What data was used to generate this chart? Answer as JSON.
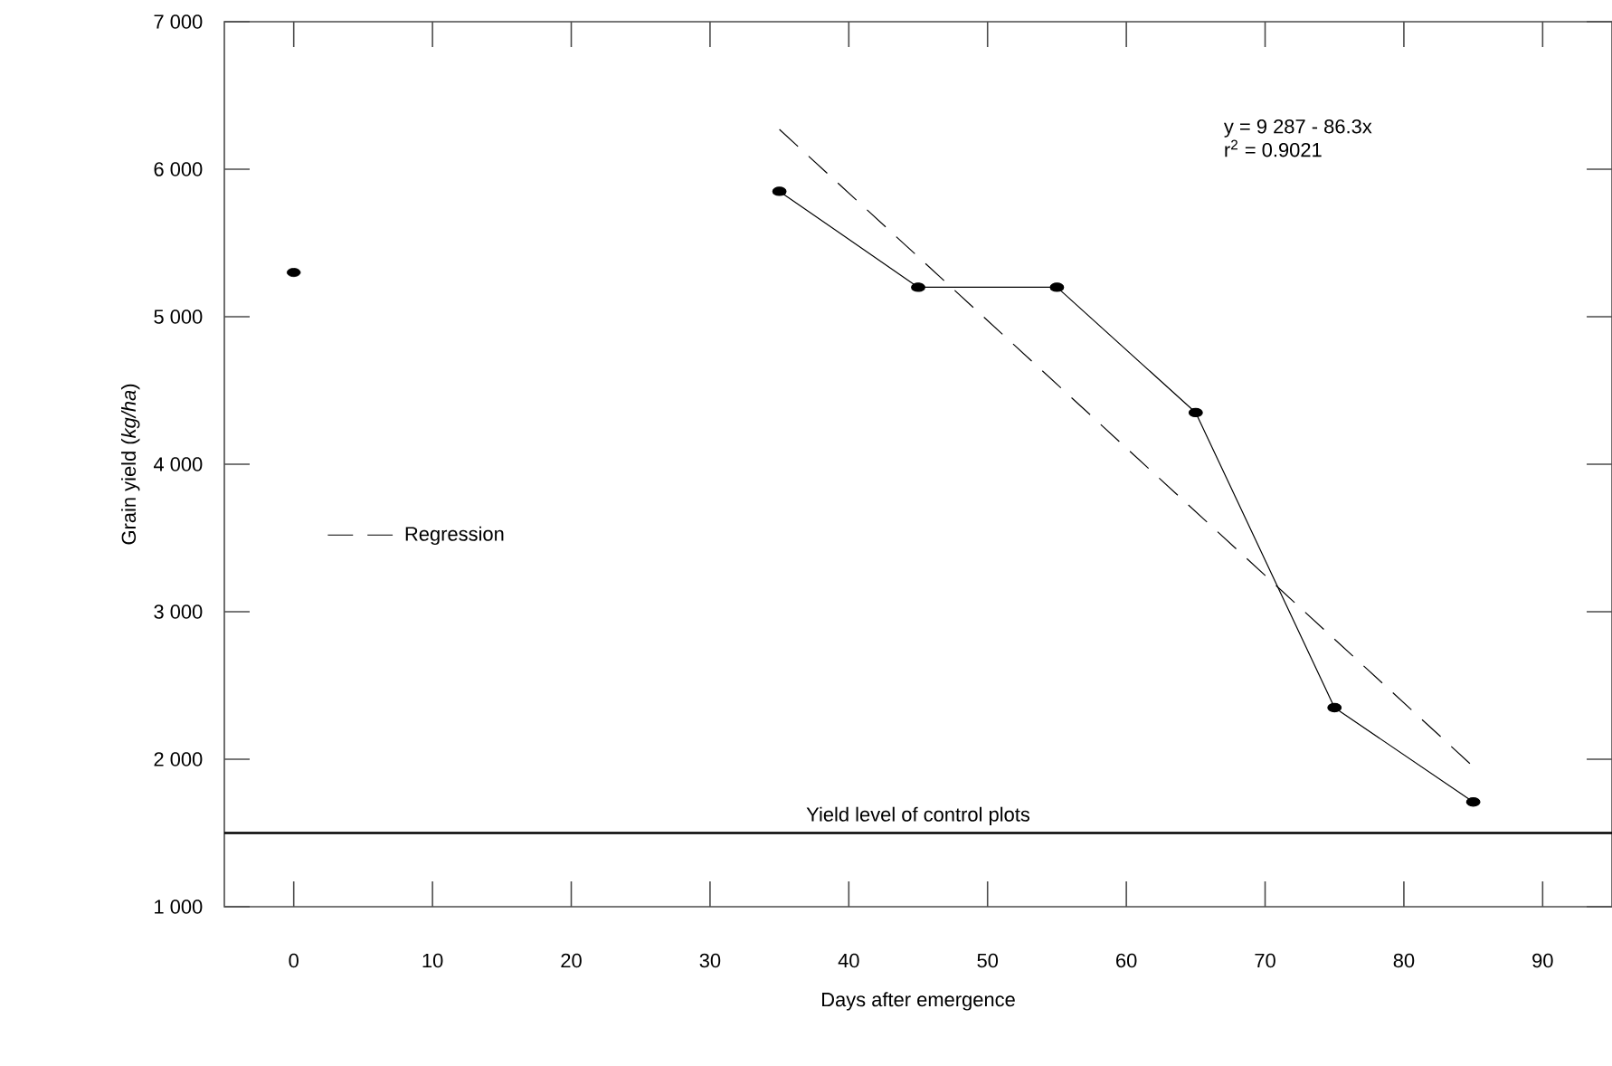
{
  "chart_data": {
    "type": "line",
    "xlabel": "Days after emergence",
    "ylabel": "Grain yield (*kg/ha*)",
    "xlim": [
      -5,
      95
    ],
    "ylim": [
      1000,
      7000
    ],
    "xticks": [
      0,
      10,
      20,
      30,
      40,
      50,
      60,
      70,
      80,
      90
    ],
    "yticks": [
      {
        "value": 1000,
        "label": "1 000"
      },
      {
        "value": 2000,
        "label": "2 000"
      },
      {
        "value": 3000,
        "label": "3 000"
      },
      {
        "value": 4000,
        "label": "4 000"
      },
      {
        "value": 5000,
        "label": "5 000"
      },
      {
        "value": 6000,
        "label": "6 000"
      },
      {
        "value": 7000,
        "label": "7 000"
      }
    ],
    "series": [
      {
        "type": "scatter",
        "color": "#000000",
        "marker": "circle",
        "x": [
          0
        ],
        "values": [
          5300
        ]
      },
      {
        "color": "#000000",
        "marker": "circle",
        "line_style": "solid",
        "x": [
          35,
          45,
          55,
          65,
          75,
          85
        ],
        "values": [
          5850,
          5200,
          5200,
          4350,
          2350,
          1710
        ]
      },
      {
        "name": "Regression",
        "color": "#000000",
        "marker": "none",
        "line_style": "dashed",
        "x": [
          35,
          85
        ],
        "values": [
          6270,
          1950
        ]
      }
    ],
    "ref_lines": [
      {
        "axis": "y",
        "value": 1500,
        "label": "Yield level of control plots",
        "color": "#000000"
      }
    ],
    "annotations": [
      "y = 9 287 - 86.3x",
      "r$^{2}$ = 0.9021"
    ],
    "legend": "left",
    "grid": false
  }
}
